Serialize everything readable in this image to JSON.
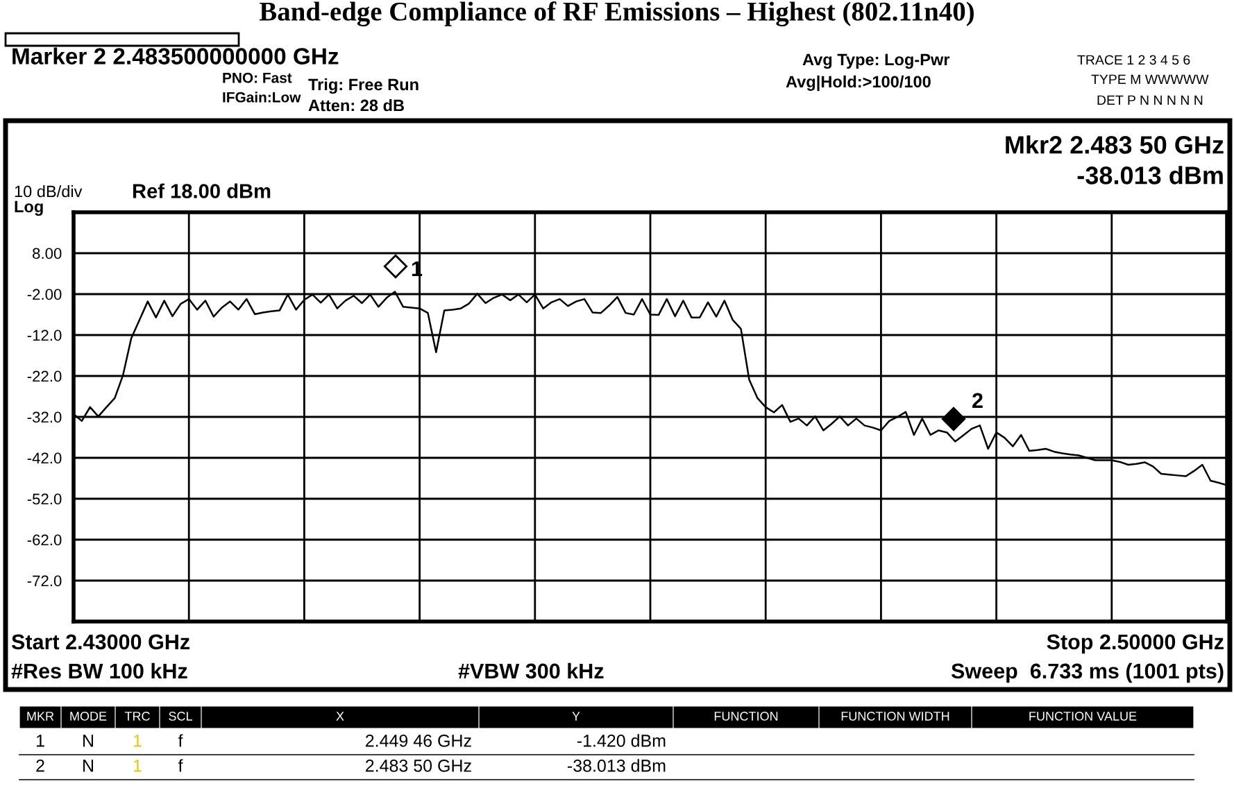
{
  "chart_data": {
    "type": "line",
    "title": "Band-edge Compliance of RF Emissions – Highest (802.11n40)",
    "categories": [
      null,
      null,
      null,
      null,
      null,
      null,
      null,
      null,
      null,
      null,
      null,
      null,
      null,
      null,
      null,
      null,
      null,
      null,
      null,
      null,
      null,
      null,
      null,
      null,
      null,
      null,
      null,
      null,
      null,
      null,
      null,
      null,
      null,
      null,
      null,
      null,
      null,
      null,
      null,
      null,
      null,
      null,
      null,
      null,
      null,
      null,
      null,
      null,
      null,
      null,
      null,
      null,
      null,
      null,
      null,
      null,
      null,
      null,
      null,
      null,
      null,
      null,
      null,
      null,
      null,
      null,
      null,
      null,
      null,
      null,
      null,
      null,
      null,
      null,
      null,
      null,
      null,
      null,
      null,
      null,
      null,
      null,
      null,
      null,
      null,
      null,
      null,
      null,
      null,
      null,
      null,
      null,
      null,
      null,
      null,
      null,
      null,
      null,
      null,
      null,
      null,
      null,
      null,
      null,
      null,
      null,
      null,
      null,
      null,
      null,
      null,
      null,
      null,
      null,
      null,
      null,
      null,
      null,
      null,
      null,
      null,
      null,
      null,
      null,
      null,
      null,
      null,
      null,
      null,
      null,
      null,
      null,
      null,
      null,
      null,
      null,
      null,
      null,
      null,
      null,
      null
    ],
    "ylim": [
      -82,
      18
    ],
    "yticks": [
      {
        "value": 8,
        "label": "8.00"
      },
      {
        "value": -2,
        "label": "-2.00"
      },
      {
        "value": -12,
        "label": "-12.0"
      },
      {
        "value": -22,
        "label": "-22.0"
      },
      {
        "value": -32,
        "label": "-32.0"
      },
      {
        "value": -42,
        "label": "-42.0"
      },
      {
        "value": -52,
        "label": "-52.0"
      },
      {
        "value": -62,
        "label": "-62.0"
      },
      {
        "value": -72,
        "label": "-72.0"
      }
    ],
    "tick_labels": "y",
    "grid": true,
    "line_style": "solid",
    "series": [
      {
        "color": "#000000",
        "values": [
          -31.3,
          -33.0,
          -29.6,
          -31.9,
          -29.6,
          -27.4,
          -21.8,
          -12.8,
          -8.3,
          -3.8,
          -7.7,
          -3.6,
          -7.4,
          -4.4,
          -3.2,
          -5.8,
          -3.6,
          -7.5,
          -5.3,
          -3.8,
          -5.8,
          -3.2,
          -6.9,
          -6.5,
          -6.2,
          -6.0,
          -2.1,
          -5.8,
          -3.4,
          -2.1,
          -4.1,
          -2.1,
          -5.5,
          -3.6,
          -2.4,
          -4.2,
          -2.1,
          -5.1,
          -2.9,
          -1.4,
          -5.1,
          -5.3,
          -5.5,
          -6.6,
          -16.2,
          -6.0,
          -5.8,
          -5.5,
          -4.3,
          -1.9,
          -4.2,
          -2.9,
          -2.1,
          -3.5,
          -2.1,
          -4.0,
          -2.1,
          -5.5,
          -4.0,
          -3.2,
          -4.9,
          -3.8,
          -3.2,
          -6.5,
          -6.6,
          -4.8,
          -2.7,
          -6.6,
          -7.0,
          -3.2,
          -7.0,
          -7.1,
          -3.2,
          -7.4,
          -3.6,
          -7.7,
          -7.7,
          -4.0,
          -7.5,
          -3.6,
          -8.3,
          -10.5,
          -22.9,
          -27.4,
          -29.6,
          -30.9,
          -29.1,
          -33.2,
          -32.4,
          -34.1,
          -31.9,
          -35.3,
          -33.7,
          -31.9,
          -34.1,
          -32.4,
          -34.1,
          -34.6,
          -35.3,
          -33.0,
          -32.0,
          -30.8,
          -36.4,
          -32.4,
          -36.4,
          -35.3,
          -35.8,
          -38.0,
          -36.5,
          -34.9,
          -34.1,
          -39.8,
          -35.8,
          -37.1,
          -39.2,
          -36.4,
          -40.3,
          -40.1,
          -39.8,
          -40.5,
          -40.9,
          -41.2,
          -41.4,
          -42.0,
          -42.6,
          -42.6,
          -42.6,
          -43.0,
          -43.7,
          -43.5,
          -43.1,
          -44.1,
          -45.9,
          -46.1,
          -46.3,
          -46.5,
          -45.2,
          -43.7,
          -47.6,
          -48.1,
          -48.7
        ]
      }
    ],
    "annotations": [
      "Marker 2 2.483500000000 GHz",
      "PNO: Fast",
      "IFGain:Low",
      "Trig: Free Run",
      "Atten: 28 dB",
      "Avg Type: Log-Pwr",
      "Avg|Hold:>100/100",
      "TRACE 1 2 3 4 5 6",
      "TYPE M WWWWW",
      "DET P N N N N N",
      "Mkr2 2.483 50 GHz",
      "-38.013 dBm",
      "10 dB/div",
      "Log",
      "Ref 18.00 dBm",
      "Start 2.43000 GHz",
      "Stop 2.50000 GHz",
      "#Res BW 100 kHz",
      "#VBW 300 kHz",
      "Sweep  6.733 ms (1001 pts)",
      "MKR",
      "MODE",
      "TRC",
      "SCL",
      "X",
      "Y",
      "FUNCTION",
      "FUNCTION WIDTH",
      "FUNCTION VALUE",
      "1",
      "N",
      "1",
      "f",
      "2.449 46 GHz",
      "-1.420 dBm",
      "2",
      "N",
      "1",
      "f",
      "2.483 50 GHz",
      "-38.013 dBm",
      "1",
      "2"
    ]
  }
}
